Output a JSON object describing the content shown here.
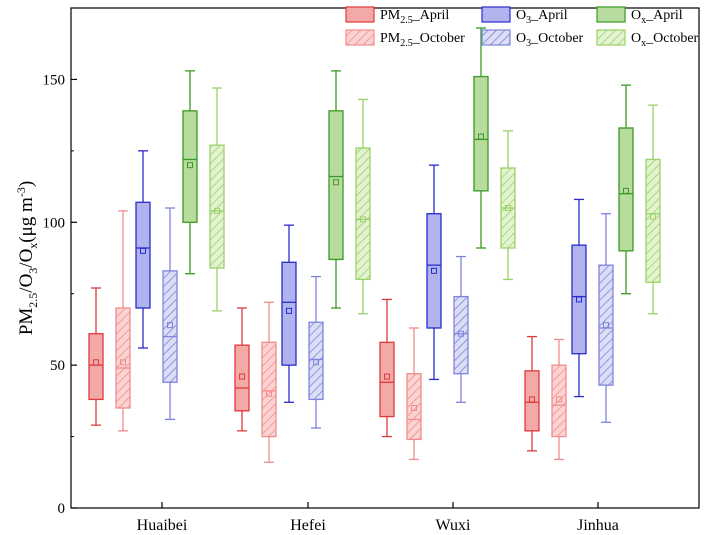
{
  "chart_data": {
    "type": "box",
    "categories": [
      "Huaibei",
      "Hefei",
      "Wuxi",
      "Jinhua"
    ],
    "ylabel": "PM2.5/O3/Ox(μg m-3)",
    "ylabel_parts": {
      "pm": "PM",
      "pm_sub": "2.5",
      "s1": "/O",
      "o3_sub": "3",
      "s2": "/O",
      "ox_sub": "x",
      "unit_open": "(μg m",
      "unit_sup": "-3",
      "unit_close": ")"
    },
    "ylim": [
      0,
      175
    ],
    "yticks": [
      0,
      50,
      100,
      150
    ],
    "legend_position": "top-right",
    "series": [
      {
        "name": "PM2.5_April",
        "label_main": "PM",
        "label_sub": "2.5",
        "label_rest": "_April",
        "color": "#e03a3c",
        "fill": "#f4a9a9",
        "hatch": false,
        "boxes": [
          {
            "min": 29,
            "q1": 38,
            "median": 50,
            "q3": 61,
            "max": 77,
            "mean": 51
          },
          {
            "min": 27,
            "q1": 34,
            "median": 42,
            "q3": 57,
            "max": 70,
            "mean": 46
          },
          {
            "min": 25,
            "q1": 32,
            "median": 44,
            "q3": 58,
            "max": 73,
            "mean": 46
          },
          {
            "min": 20,
            "q1": 27,
            "median": 37,
            "q3": 48,
            "max": 60,
            "mean": 38
          }
        ]
      },
      {
        "name": "O3_April",
        "label_main": "O",
        "label_sub": "3",
        "label_rest": "_April",
        "color": "#2b2bcc",
        "fill": "#b0b4ee",
        "hatch": false,
        "boxes": [
          {
            "min": 56,
            "q1": 70,
            "median": 91,
            "q3": 107,
            "max": 125,
            "mean": 90
          },
          {
            "min": 37,
            "q1": 50,
            "median": 72,
            "q3": 86,
            "max": 99,
            "mean": 69
          },
          {
            "min": 45,
            "q1": 63,
            "median": 85,
            "q3": 103,
            "max": 120,
            "mean": 83
          },
          {
            "min": 39,
            "q1": 54,
            "median": 74,
            "q3": 92,
            "max": 108,
            "mean": 73
          }
        ]
      },
      {
        "name": "Ox_April",
        "label_main": "O",
        "label_sub": "x",
        "label_rest": "_April",
        "color": "#3a9a23",
        "fill": "#b7dc9e",
        "hatch": false,
        "boxes": [
          {
            "min": 82,
            "q1": 100,
            "median": 122,
            "q3": 139,
            "max": 153,
            "mean": 120
          },
          {
            "min": 70,
            "q1": 87,
            "median": 116,
            "q3": 139,
            "max": 153,
            "mean": 114
          },
          {
            "min": 91,
            "q1": 111,
            "median": 129,
            "q3": 151,
            "max": 168,
            "mean": 130
          },
          {
            "min": 75,
            "q1": 90,
            "median": 110,
            "q3": 133,
            "max": 148,
            "mean": 111
          }
        ]
      },
      {
        "name": "PM2.5_October",
        "label_main": "PM",
        "label_sub": "2.5",
        "label_rest": "_October",
        "color": "#f28c8c",
        "fill": "#fbd3d3",
        "hatch": true,
        "boxes": [
          {
            "min": 27,
            "q1": 35,
            "median": 49,
            "q3": 70,
            "max": 104,
            "mean": 51
          },
          {
            "min": 16,
            "q1": 25,
            "median": 41,
            "q3": 58,
            "max": 72,
            "mean": 40
          },
          {
            "min": 17,
            "q1": 24,
            "median": 31,
            "q3": 47,
            "max": 63,
            "mean": 35
          },
          {
            "min": 17,
            "q1": 25,
            "median": 36,
            "q3": 50,
            "max": 59,
            "mean": 38
          }
        ]
      },
      {
        "name": "O3_October",
        "label_main": "O",
        "label_sub": "3",
        "label_rest": "_October",
        "color": "#7f84db",
        "fill": "#dcdef6",
        "hatch": true,
        "boxes": [
          {
            "min": 31,
            "q1": 44,
            "median": 60,
            "q3": 83,
            "max": 105,
            "mean": 64
          },
          {
            "min": 28,
            "q1": 38,
            "median": 52,
            "q3": 65,
            "max": 81,
            "mean": 51
          },
          {
            "min": 37,
            "q1": 47,
            "median": 61,
            "q3": 74,
            "max": 88,
            "mean": 61
          },
          {
            "min": 30,
            "q1": 43,
            "median": 63,
            "q3": 85,
            "max": 103,
            "mean": 64
          }
        ]
      },
      {
        "name": "Ox_October",
        "label_main": "O",
        "label_sub": "x",
        "label_rest": "_October",
        "color": "#9ad168",
        "fill": "#e3f3d1",
        "hatch": true,
        "boxes": [
          {
            "min": 69,
            "q1": 84,
            "median": 104,
            "q3": 127,
            "max": 147,
            "mean": 104
          },
          {
            "min": 68,
            "q1": 80,
            "median": 101,
            "q3": 126,
            "max": 143,
            "mean": 101
          },
          {
            "min": 80,
            "q1": 91,
            "median": 105,
            "q3": 119,
            "max": 132,
            "mean": 105
          },
          {
            "min": 68,
            "q1": 79,
            "median": 103,
            "q3": 122,
            "max": 141,
            "mean": 102
          }
        ]
      }
    ]
  }
}
